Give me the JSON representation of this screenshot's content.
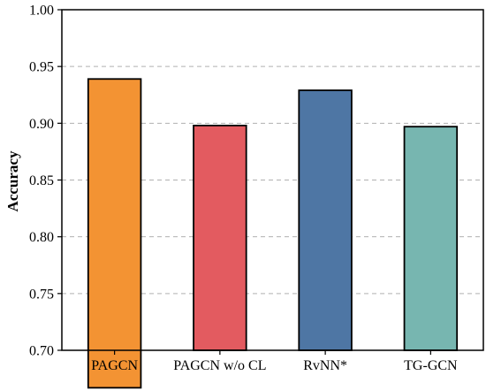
{
  "chart_data": {
    "type": "bar",
    "title": "",
    "xlabel": "",
    "ylabel": "Accuracy",
    "categories": [
      "PAGCN",
      "PAGCN w/o CL",
      "RvNN*",
      "TG-GCN"
    ],
    "values": [
      0.939,
      0.898,
      0.929,
      0.897
    ],
    "ylim": [
      0.7,
      1.0
    ],
    "yticks": [
      "0.70",
      "0.75",
      "0.80",
      "0.85",
      "0.90",
      "0.95",
      "1.00"
    ],
    "grid": "horizontal dashed",
    "legend": "none",
    "colors": [
      "#F39333",
      "#E35B60",
      "#4E76A4",
      "#77B6B0"
    ],
    "edge_color": "#000000"
  }
}
